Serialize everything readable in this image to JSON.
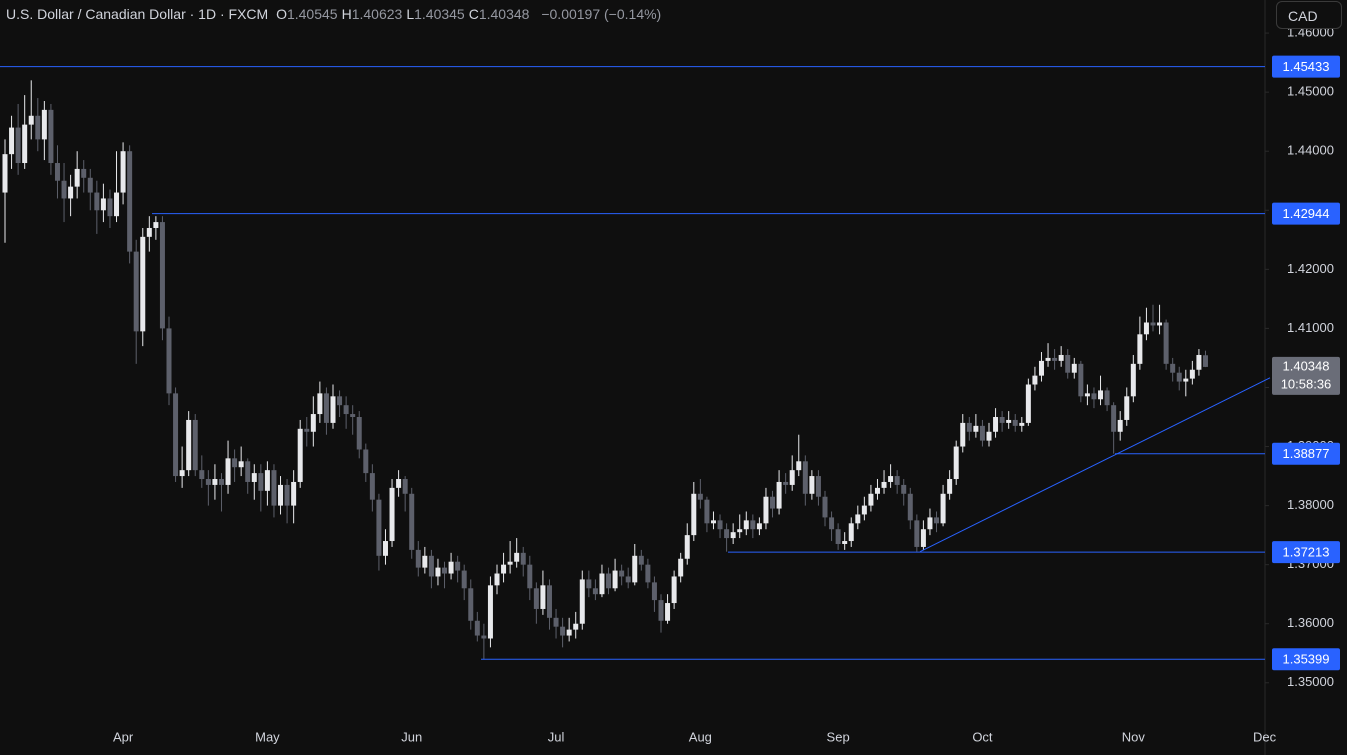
{
  "chart_data": {
    "type": "candlestick",
    "title": "U.S. Dollar / Canadian Dollar · 1D · FXCM",
    "ohlc_legend": [
      {
        "label": "O",
        "value": 1.40545
      },
      {
        "label": "H",
        "value": 1.40623
      },
      {
        "label": "L",
        "value": 1.40345
      },
      {
        "label": "C",
        "value": 1.40348
      }
    ],
    "change_label": "−0.00197 (−0.14%)",
    "currency": "CAD",
    "last_price": 1.40348,
    "countdown": "10:58:36",
    "up_color": "#e8e9ec",
    "down_color": "#5d606b",
    "level_color": "#2962ff",
    "ylim": [
      1.3437,
      1.4656
    ],
    "yticks": [
      {
        "value": 1.35,
        "label": "1.35000"
      },
      {
        "value": 1.36,
        "label": "1.36000"
      },
      {
        "value": 1.37,
        "label": "1.37000"
      },
      {
        "value": 1.38,
        "label": "1.38000"
      },
      {
        "value": 1.39,
        "label": "1.39000"
      },
      {
        "value": 1.4,
        "label": "1.40000"
      },
      {
        "value": 1.41,
        "label": "1.41000"
      },
      {
        "value": 1.42,
        "label": "1.42000"
      },
      {
        "value": 1.43,
        "label": "1.43000"
      },
      {
        "value": 1.44,
        "label": "1.44000"
      },
      {
        "value": 1.45,
        "label": "1.45000"
      },
      {
        "value": 1.46,
        "label": "1.46000"
      }
    ],
    "levels": [
      1.45433,
      1.42944,
      1.38877,
      1.37213,
      1.35399
    ],
    "trendline": [
      1.3722,
      1.3886
    ],
    "categories": [
      null,
      null,
      null,
      null,
      null,
      null,
      null,
      null,
      null,
      null,
      null,
      null,
      null,
      null,
      null,
      null,
      null,
      null,
      "Apr",
      null,
      null,
      null,
      null,
      null,
      null,
      null,
      null,
      null,
      null,
      null,
      null,
      null,
      null,
      null,
      null,
      null,
      null,
      null,
      null,
      null,
      "May",
      null,
      null,
      null,
      null,
      null,
      null,
      null,
      null,
      null,
      null,
      null,
      null,
      null,
      null,
      null,
      null,
      null,
      null,
      null,
      null,
      null,
      "Jun",
      null,
      null,
      null,
      null,
      null,
      null,
      null,
      null,
      null,
      null,
      null,
      null,
      null,
      null,
      null,
      null,
      null,
      null,
      null,
      null,
      null,
      "Jul",
      null,
      null,
      null,
      null,
      null,
      null,
      null,
      null,
      null,
      null,
      null,
      null,
      null,
      null,
      null,
      null,
      null,
      null,
      null,
      null,
      null,
      "Aug",
      null,
      null,
      null,
      null,
      null,
      null,
      null,
      null,
      null,
      null,
      null,
      null,
      null,
      null,
      null,
      null,
      null,
      null,
      null,
      null,
      "Sep",
      null,
      null,
      null,
      null,
      null,
      null,
      null,
      null,
      null,
      null,
      null,
      null,
      null,
      null,
      null,
      null,
      null,
      null,
      null,
      null,
      null,
      "Oct",
      null,
      null,
      null,
      null,
      null,
      null,
      null,
      null,
      null,
      null,
      null,
      null,
      null,
      null,
      null,
      null,
      null,
      null,
      null,
      null,
      null,
      null,
      "Nov",
      null,
      null,
      null,
      null,
      null,
      null,
      null,
      null,
      null,
      null,
      null,
      null,
      null,
      null,
      null,
      null,
      null,
      null,
      null,
      "Dec",
      null
    ],
    "candles": [
      [
        1.433,
        1.442,
        1.4245,
        1.4395
      ],
      [
        1.4395,
        1.446,
        1.437,
        1.444
      ],
      [
        1.444,
        1.448,
        1.436,
        1.438
      ],
      [
        1.438,
        1.4495,
        1.437,
        1.4445
      ],
      [
        1.4445,
        1.452,
        1.442,
        1.446
      ],
      [
        1.446,
        1.449,
        1.44,
        1.442
      ],
      [
        1.442,
        1.4485,
        1.4385,
        1.447
      ],
      [
        1.447,
        1.448,
        1.436,
        1.438
      ],
      [
        1.438,
        1.441,
        1.432,
        1.435
      ],
      [
        1.435,
        1.438,
        1.428,
        1.432
      ],
      [
        1.432,
        1.436,
        1.429,
        1.434
      ],
      [
        1.434,
        1.44,
        1.432,
        1.437
      ],
      [
        1.437,
        1.4385,
        1.433,
        1.4355
      ],
      [
        1.4355,
        1.437,
        1.43,
        1.433
      ],
      [
        1.433,
        1.435,
        1.426,
        1.43
      ],
      [
        1.43,
        1.4345,
        1.428,
        1.432
      ],
      [
        1.432,
        1.4335,
        1.427,
        1.429
      ],
      [
        1.429,
        1.44,
        1.428,
        1.433
      ],
      [
        1.433,
        1.4415,
        1.431,
        1.44
      ],
      [
        1.44,
        1.441,
        1.421,
        1.423
      ],
      [
        1.423,
        1.425,
        1.404,
        1.4095
      ],
      [
        1.4095,
        1.427,
        1.407,
        1.4255
      ],
      [
        1.4255,
        1.429,
        1.423,
        1.427
      ],
      [
        1.427,
        1.429,
        1.425,
        1.428
      ],
      [
        1.428,
        1.429,
        1.408,
        1.41
      ],
      [
        1.41,
        1.412,
        1.397,
        1.399
      ],
      [
        1.399,
        1.4,
        1.384,
        1.385
      ],
      [
        1.385,
        1.39,
        1.383,
        1.386
      ],
      [
        1.386,
        1.396,
        1.385,
        1.3945
      ],
      [
        1.3945,
        1.3955,
        1.385,
        1.386
      ],
      [
        1.386,
        1.3885,
        1.383,
        1.3845
      ],
      [
        1.3845,
        1.386,
        1.38,
        1.3835
      ],
      [
        1.3835,
        1.387,
        1.381,
        1.3845
      ],
      [
        1.3845,
        1.3855,
        1.379,
        1.3835
      ],
      [
        1.3835,
        1.391,
        1.382,
        1.388
      ],
      [
        1.388,
        1.3895,
        1.384,
        1.3865
      ],
      [
        1.3865,
        1.39,
        1.385,
        1.3875
      ],
      [
        1.3875,
        1.388,
        1.382,
        1.384
      ],
      [
        1.384,
        1.387,
        1.381,
        1.3855
      ],
      [
        1.3855,
        1.387,
        1.379,
        1.3825
      ],
      [
        1.3825,
        1.3875,
        1.38,
        1.386
      ],
      [
        1.386,
        1.387,
        1.378,
        1.38
      ],
      [
        1.38,
        1.385,
        1.3785,
        1.3835
      ],
      [
        1.3835,
        1.3845,
        1.377,
        1.38
      ],
      [
        1.38,
        1.386,
        1.377,
        1.384
      ],
      [
        1.384,
        1.3945,
        1.383,
        1.393
      ],
      [
        1.393,
        1.395,
        1.39,
        1.3925
      ],
      [
        1.3925,
        1.3985,
        1.39,
        1.3955
      ],
      [
        1.3955,
        1.401,
        1.394,
        1.399
      ],
      [
        1.399,
        1.4,
        1.392,
        1.394
      ],
      [
        1.394,
        1.4005,
        1.393,
        1.3985
      ],
      [
        1.3985,
        1.3995,
        1.395,
        1.397
      ],
      [
        1.397,
        1.3985,
        1.393,
        1.3955
      ],
      [
        1.3955,
        1.397,
        1.392,
        1.395
      ],
      [
        1.395,
        1.396,
        1.388,
        1.3895
      ],
      [
        1.3895,
        1.3905,
        1.384,
        1.3855
      ],
      [
        1.3855,
        1.387,
        1.379,
        1.381
      ],
      [
        1.381,
        1.382,
        1.369,
        1.3715
      ],
      [
        1.3715,
        1.376,
        1.37,
        1.374
      ],
      [
        1.374,
        1.3845,
        1.373,
        1.383
      ],
      [
        1.383,
        1.386,
        1.3815,
        1.3845
      ],
      [
        1.3845,
        1.385,
        1.379,
        1.382
      ],
      [
        1.382,
        1.383,
        1.371,
        1.3725
      ],
      [
        1.3725,
        1.374,
        1.368,
        1.3695
      ],
      [
        1.3695,
        1.373,
        1.3685,
        1.3715
      ],
      [
        1.3715,
        1.3725,
        1.366,
        1.368
      ],
      [
        1.368,
        1.371,
        1.3665,
        1.3695
      ],
      [
        1.3695,
        1.3705,
        1.366,
        1.3685
      ],
      [
        1.3685,
        1.372,
        1.3675,
        1.3705
      ],
      [
        1.3705,
        1.3715,
        1.367,
        1.369
      ],
      [
        1.369,
        1.37,
        1.364,
        1.366
      ],
      [
        1.366,
        1.3675,
        1.359,
        1.3605
      ],
      [
        1.3605,
        1.362,
        1.357,
        1.358
      ],
      [
        1.358,
        1.36,
        1.354,
        1.3575
      ],
      [
        1.3575,
        1.368,
        1.356,
        1.3665
      ],
      [
        1.3665,
        1.37,
        1.365,
        1.3685
      ],
      [
        1.3685,
        1.372,
        1.367,
        1.37
      ],
      [
        1.37,
        1.374,
        1.3685,
        1.3705
      ],
      [
        1.3705,
        1.3745,
        1.3695,
        1.372
      ],
      [
        1.372,
        1.373,
        1.368,
        1.37
      ],
      [
        1.37,
        1.3715,
        1.364,
        1.366
      ],
      [
        1.366,
        1.367,
        1.36,
        1.3625
      ],
      [
        1.3625,
        1.369,
        1.3615,
        1.3665
      ],
      [
        1.3665,
        1.3675,
        1.359,
        1.361
      ],
      [
        1.361,
        1.3625,
        1.3575,
        1.3595
      ],
      [
        1.3595,
        1.361,
        1.356,
        1.358
      ],
      [
        1.358,
        1.361,
        1.357,
        1.359
      ],
      [
        1.359,
        1.362,
        1.3575,
        1.36
      ],
      [
        1.36,
        1.369,
        1.359,
        1.3675
      ],
      [
        1.3675,
        1.369,
        1.3645,
        1.366
      ],
      [
        1.366,
        1.3675,
        1.364,
        1.365
      ],
      [
        1.365,
        1.37,
        1.3645,
        1.3685
      ],
      [
        1.3685,
        1.3695,
        1.365,
        1.366
      ],
      [
        1.366,
        1.371,
        1.3655,
        1.369
      ],
      [
        1.369,
        1.37,
        1.3665,
        1.368
      ],
      [
        1.368,
        1.3695,
        1.366,
        1.367
      ],
      [
        1.367,
        1.3735,
        1.3665,
        1.3715
      ],
      [
        1.3715,
        1.3725,
        1.369,
        1.37
      ],
      [
        1.37,
        1.371,
        1.366,
        1.367
      ],
      [
        1.367,
        1.368,
        1.362,
        1.364
      ],
      [
        1.364,
        1.365,
        1.3585,
        1.3605
      ],
      [
        1.3605,
        1.365,
        1.36,
        1.3635
      ],
      [
        1.3635,
        1.369,
        1.3625,
        1.368
      ],
      [
        1.368,
        1.372,
        1.367,
        1.371
      ],
      [
        1.371,
        1.377,
        1.37,
        1.375
      ],
      [
        1.375,
        1.384,
        1.374,
        1.382
      ],
      [
        1.382,
        1.3845,
        1.3795,
        1.381
      ],
      [
        1.381,
        1.3815,
        1.3755,
        1.377
      ],
      [
        1.377,
        1.379,
        1.376,
        1.3775
      ],
      [
        1.3775,
        1.3785,
        1.3745,
        1.376
      ],
      [
        1.376,
        1.377,
        1.3722,
        1.3745
      ],
      [
        1.3745,
        1.377,
        1.3735,
        1.3755
      ],
      [
        1.3755,
        1.3785,
        1.3745,
        1.376
      ],
      [
        1.376,
        1.379,
        1.375,
        1.3775
      ],
      [
        1.3775,
        1.3785,
        1.3745,
        1.376
      ],
      [
        1.376,
        1.378,
        1.375,
        1.377
      ],
      [
        1.377,
        1.383,
        1.376,
        1.3815
      ],
      [
        1.3815,
        1.3825,
        1.378,
        1.3795
      ],
      [
        1.3795,
        1.386,
        1.3785,
        1.384
      ],
      [
        1.384,
        1.3855,
        1.382,
        1.3835
      ],
      [
        1.3835,
        1.3885,
        1.3825,
        1.386
      ],
      [
        1.386,
        1.392,
        1.385,
        1.3875
      ],
      [
        1.3875,
        1.3885,
        1.38,
        1.382
      ],
      [
        1.382,
        1.386,
        1.381,
        1.385
      ],
      [
        1.385,
        1.386,
        1.38,
        1.3815
      ],
      [
        1.3815,
        1.3825,
        1.3765,
        1.378
      ],
      [
        1.378,
        1.379,
        1.374,
        1.376
      ],
      [
        1.376,
        1.377,
        1.3725,
        1.3735
      ],
      [
        1.3735,
        1.3755,
        1.3725,
        1.374
      ],
      [
        1.374,
        1.378,
        1.373,
        1.377
      ],
      [
        1.377,
        1.38,
        1.376,
        1.3785
      ],
      [
        1.3785,
        1.3815,
        1.3775,
        1.38
      ],
      [
        1.38,
        1.3835,
        1.379,
        1.382
      ],
      [
        1.382,
        1.3845,
        1.381,
        1.383
      ],
      [
        1.383,
        1.386,
        1.382,
        1.384
      ],
      [
        1.384,
        1.387,
        1.383,
        1.385
      ],
      [
        1.385,
        1.386,
        1.382,
        1.3835
      ],
      [
        1.3835,
        1.3845,
        1.38,
        1.382
      ],
      [
        1.382,
        1.383,
        1.376,
        1.3775
      ],
      [
        1.3775,
        1.3785,
        1.3722,
        1.373
      ],
      [
        1.373,
        1.3775,
        1.3725,
        1.376
      ],
      [
        1.376,
        1.3795,
        1.375,
        1.378
      ],
      [
        1.378,
        1.379,
        1.3755,
        1.377
      ],
      [
        1.377,
        1.3835,
        1.3765,
        1.382
      ],
      [
        1.382,
        1.386,
        1.381,
        1.3845
      ],
      [
        1.3845,
        1.391,
        1.3835,
        1.39
      ],
      [
        1.39,
        1.3955,
        1.389,
        1.394
      ],
      [
        1.394,
        1.395,
        1.391,
        1.3925
      ],
      [
        1.3925,
        1.3955,
        1.3915,
        1.3935
      ],
      [
        1.3935,
        1.3945,
        1.39,
        1.391
      ],
      [
        1.391,
        1.394,
        1.39,
        1.3925
      ],
      [
        1.3925,
        1.3965,
        1.3915,
        1.395
      ],
      [
        1.395,
        1.396,
        1.3925,
        1.394
      ],
      [
        1.394,
        1.396,
        1.393,
        1.3945
      ],
      [
        1.3945,
        1.3955,
        1.3925,
        1.3935
      ],
      [
        1.3935,
        1.395,
        1.3925,
        1.394
      ],
      [
        1.394,
        1.4015,
        1.3935,
        1.4005
      ],
      [
        1.4005,
        1.4035,
        1.3995,
        1.402
      ],
      [
        1.402,
        1.406,
        1.401,
        1.4045
      ],
      [
        1.4045,
        1.4075,
        1.4035,
        1.405
      ],
      [
        1.405,
        1.4065,
        1.403,
        1.4045
      ],
      [
        1.4045,
        1.407,
        1.4035,
        1.4055
      ],
      [
        1.4055,
        1.4065,
        1.4015,
        1.4025
      ],
      [
        1.4025,
        1.405,
        1.4015,
        1.404
      ],
      [
        1.404,
        1.4045,
        1.3975,
        1.3985
      ],
      [
        1.3985,
        1.4005,
        1.397,
        1.399
      ],
      [
        1.399,
        1.4,
        1.3965,
        1.398
      ],
      [
        1.398,
        1.402,
        1.397,
        1.3995
      ],
      [
        1.3995,
        1.4,
        1.396,
        1.397
      ],
      [
        1.397,
        1.3975,
        1.3888,
        1.3925
      ],
      [
        1.3925,
        1.396,
        1.391,
        1.3945
      ],
      [
        1.3945,
        1.4,
        1.3935,
        1.3985
      ],
      [
        1.3985,
        1.4055,
        1.3975,
        1.404
      ],
      [
        1.404,
        1.412,
        1.403,
        1.409
      ],
      [
        1.409,
        1.4135,
        1.408,
        1.411
      ],
      [
        1.411,
        1.414,
        1.4095,
        1.4105
      ],
      [
        1.4105,
        1.414,
        1.409,
        1.411
      ],
      [
        1.411,
        1.4115,
        1.403,
        1.404
      ],
      [
        1.404,
        1.405,
        1.401,
        1.4025
      ],
      [
        1.4025,
        1.4035,
        1.3995,
        1.401
      ],
      [
        1.401,
        1.403,
        1.3985,
        1.4015
      ],
      [
        1.4015,
        1.4045,
        1.4005,
        1.403
      ],
      [
        1.403,
        1.4065,
        1.402,
        1.4055
      ],
      [
        1.40545,
        1.40623,
        1.40345,
        1.40348
      ],
      null,
      null,
      null,
      null,
      null,
      null,
      null,
      null,
      null,
      null
    ]
  }
}
